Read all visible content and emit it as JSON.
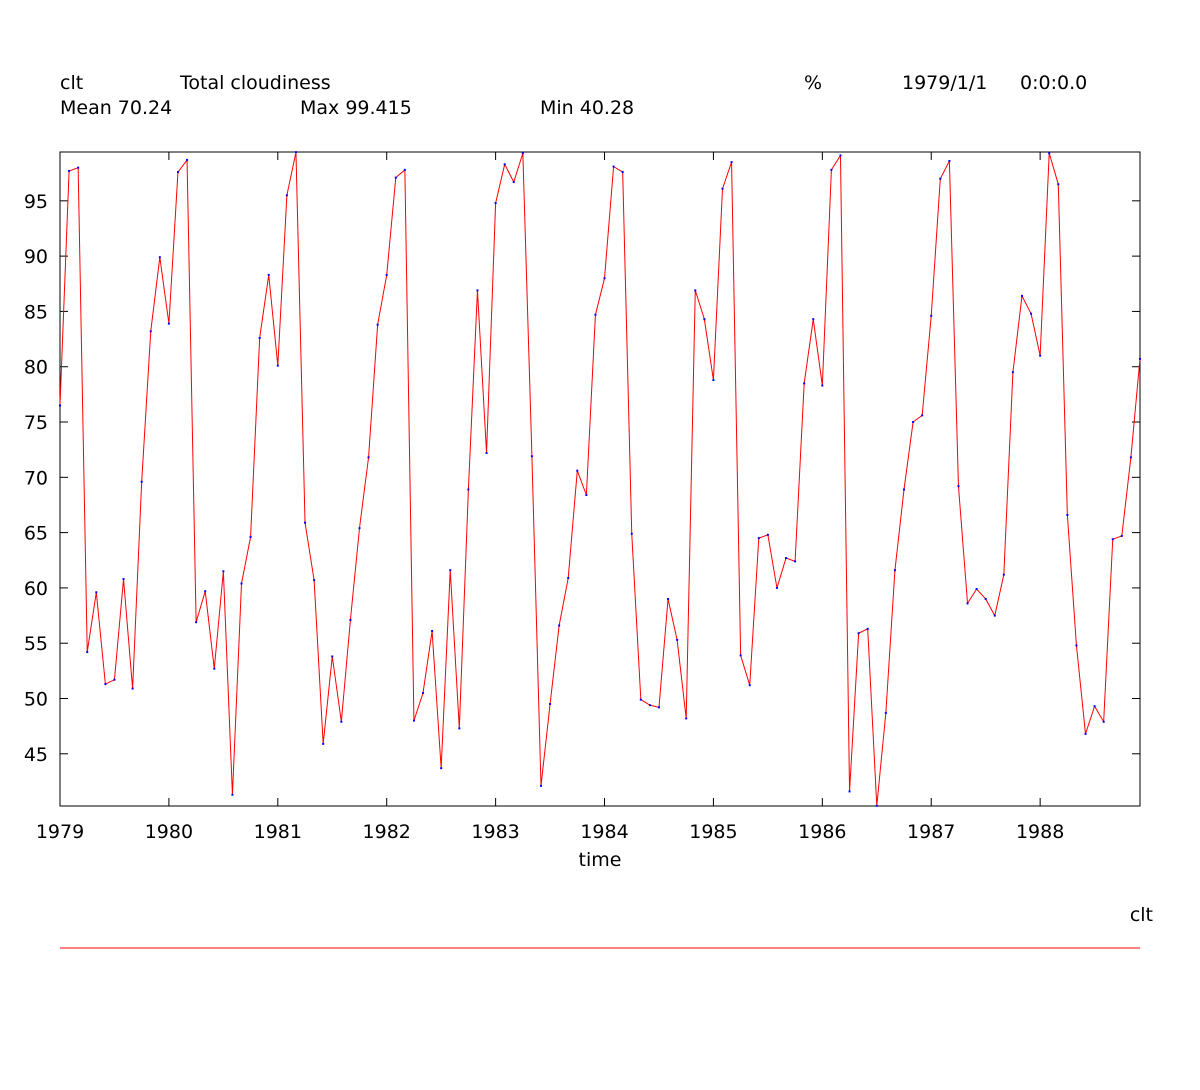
{
  "header": {
    "variable": "clt",
    "long_name": "Total cloudiness",
    "units": "%",
    "date": "1979/1/1",
    "time": "0:0:0.0",
    "mean_label": "Mean 70.24",
    "max_label": "Max 99.415",
    "min_label": "Min 40.28"
  },
  "legend": {
    "label": "clt"
  },
  "colors": {
    "line": "#ff0000",
    "marker": "#0000ff",
    "axis": "#000000"
  },
  "chart_data": {
    "type": "line",
    "title": "Total cloudiness",
    "xlabel": "time",
    "ylabel": "",
    "x_start": 1979.0,
    "x_step_months": 1,
    "xlim": [
      1979.0,
      1988.917
    ],
    "ylim": [
      40.28,
      99.415
    ],
    "x_ticks": [
      "1979",
      "1980",
      "1981",
      "1982",
      "1983",
      "1984",
      "1985",
      "1986",
      "1987",
      "1988"
    ],
    "y_ticks": [
      "45",
      "50",
      "55",
      "60",
      "65",
      "70",
      "75",
      "80",
      "85",
      "90",
      "95"
    ],
    "grid": false,
    "legend_position": "bottom-right",
    "series": [
      {
        "name": "clt",
        "values": [
          76.5,
          97.7,
          98.0,
          54.2,
          59.6,
          51.3,
          51.7,
          60.8,
          50.9,
          69.6,
          83.2,
          89.9,
          83.9,
          97.6,
          98.7,
          56.9,
          59.7,
          52.7,
          61.5,
          41.3,
          60.4,
          64.6,
          82.6,
          88.3,
          80.1,
          95.5,
          99.4,
          65.9,
          60.7,
          45.9,
          53.8,
          47.9,
          57.1,
          65.4,
          71.8,
          83.8,
          88.3,
          97.1,
          97.8,
          48.0,
          50.5,
          56.1,
          43.7,
          61.6,
          47.3,
          68.9,
          86.9,
          72.2,
          94.8,
          98.3,
          96.7,
          99.3,
          71.9,
          42.1,
          49.5,
          56.6,
          60.9,
          70.6,
          68.4,
          84.7,
          88.0,
          98.1,
          97.6,
          64.9,
          49.9,
          49.4,
          49.2,
          59.0,
          55.3,
          48.2,
          86.9,
          84.3,
          78.8,
          96.1,
          98.5,
          53.9,
          51.2,
          64.5,
          64.8,
          60.0,
          62.7,
          62.4,
          78.5,
          84.3,
          78.3,
          97.8,
          99.1,
          41.6,
          55.9,
          56.3,
          40.3,
          48.7,
          61.6,
          68.9,
          75.0,
          75.6,
          84.6,
          97.0,
          98.6,
          69.2,
          58.6,
          59.9,
          59.0,
          57.5,
          61.2,
          79.5,
          86.4,
          84.8,
          81.0,
          99.3,
          96.5,
          66.6,
          54.8,
          46.8,
          49.3,
          47.9,
          64.4,
          64.7,
          71.8,
          80.7
        ]
      }
    ]
  }
}
